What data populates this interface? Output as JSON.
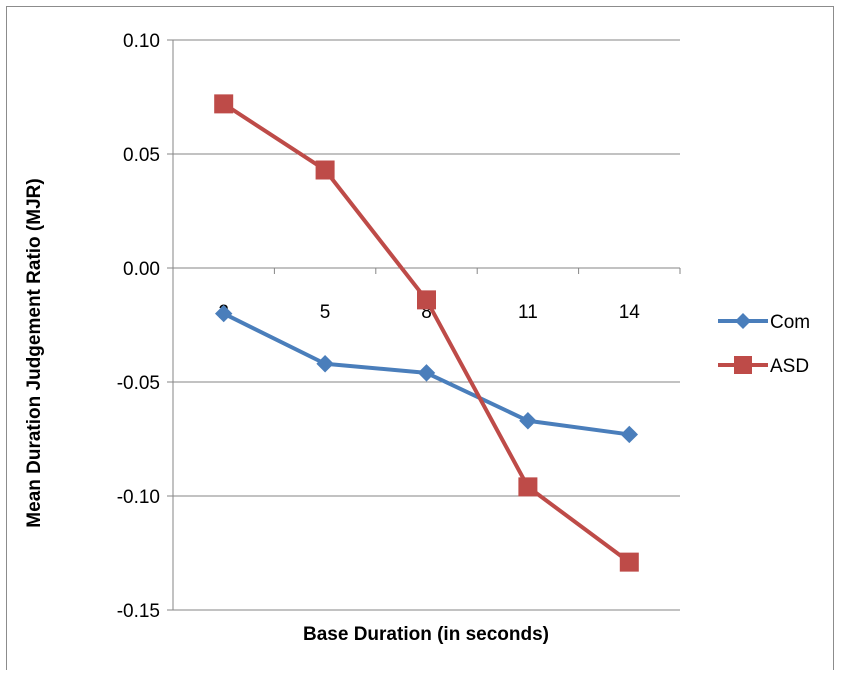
{
  "chart_data": {
    "type": "line",
    "title": "",
    "xlabel": "Base Duration (in seconds)",
    "ylabel": "Mean Duration Judgement Ratio (MJR)",
    "categories": [
      "2",
      "5",
      "8",
      "11",
      "14"
    ],
    "y_ticks": [
      "0.10",
      "0.05",
      "0.00",
      "-0.05",
      "-0.10",
      "-0.15"
    ],
    "ylim": [
      -0.15,
      0.1
    ],
    "grid": true,
    "legend_position": "right",
    "series": [
      {
        "name": "Com",
        "color": "#4a7ebb",
        "marker": "diamond",
        "values": [
          -0.02,
          -0.042,
          -0.046,
          -0.067,
          -0.073
        ]
      },
      {
        "name": "ASD",
        "color": "#be4b48",
        "marker": "square",
        "values": [
          0.072,
          0.043,
          -0.014,
          -0.096,
          -0.129
        ]
      }
    ]
  }
}
